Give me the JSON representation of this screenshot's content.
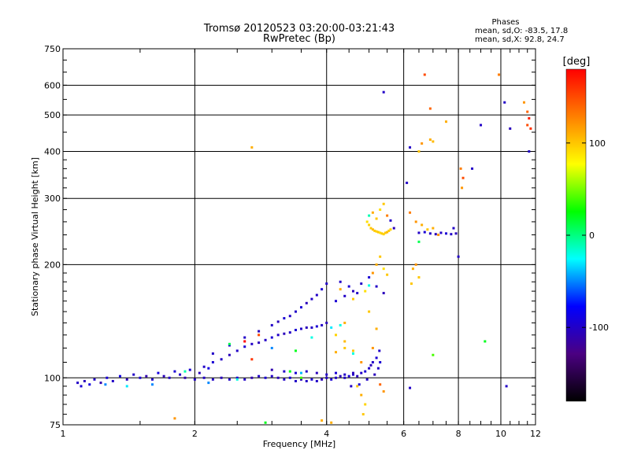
{
  "chart_data": {
    "type": "scatter",
    "title": "Tromsø 20120523 03:20:00-03:21:43",
    "subtitle": "RwPretec (Bp)",
    "xlabel": "Frequency [MHz]",
    "ylabel": "Stationary phase Virtual Height [km]",
    "x_scale": "log",
    "y_scale": "log",
    "xlim": [
      1,
      12
    ],
    "ylim": [
      75,
      750
    ],
    "x_ticks": [
      1,
      2,
      4,
      6,
      8,
      10,
      12
    ],
    "y_ticks": [
      75,
      100,
      200,
      300,
      400,
      500,
      600,
      750
    ],
    "grid": true,
    "phase_stats": {
      "heading": "Phases",
      "line_o": "mean, sd,O: -83.5, 17.8",
      "line_x": "mean, sd,X: 92.8, 24.7"
    },
    "colorbar": {
      "label": "[deg]",
      "range": [
        -180,
        180
      ],
      "ticks": [
        "100",
        "0",
        "-100"
      ],
      "tick_values": [
        100,
        0,
        -100
      ],
      "stops": [
        "#000000",
        "#4b0082",
        "#0000ff",
        "#00ffff",
        "#00ff00",
        "#ffff00",
        "#ff8000",
        "#ff0000"
      ]
    },
    "series": [
      {
        "name": "",
        "points": [
          [
            1.08,
            97,
            -100
          ],
          [
            1.1,
            95,
            -95
          ],
          [
            1.12,
            98,
            -105
          ],
          [
            1.15,
            96,
            -90
          ],
          [
            1.18,
            99,
            -100
          ],
          [
            1.22,
            97,
            -110
          ],
          [
            1.26,
            100,
            -95
          ],
          [
            1.3,
            98,
            -100
          ],
          [
            1.35,
            101,
            -90
          ],
          [
            1.4,
            99,
            -105
          ],
          [
            1.45,
            102,
            -100
          ],
          [
            1.5,
            100,
            -95
          ],
          [
            1.55,
            101,
            -110
          ],
          [
            1.6,
            99,
            -100
          ],
          [
            1.65,
            103,
            -90
          ],
          [
            1.7,
            101,
            -105
          ],
          [
            1.75,
            100,
            -100
          ],
          [
            1.8,
            104,
            -95
          ],
          [
            1.85,
            102,
            -100
          ],
          [
            1.9,
            100,
            -110
          ],
          [
            1.95,
            105,
            -95
          ],
          [
            2.0,
            99,
            -100
          ],
          [
            2.05,
            103,
            -105
          ],
          [
            2.1,
            100,
            -100
          ],
          [
            2.15,
            106,
            -90
          ],
          [
            2.2,
            99,
            -100
          ],
          [
            2.3,
            100,
            -105
          ],
          [
            2.4,
            99,
            -100
          ],
          [
            2.5,
            100,
            -95
          ],
          [
            2.6,
            99,
            -100
          ],
          [
            2.7,
            100,
            -110
          ],
          [
            2.8,
            101,
            -100
          ],
          [
            2.9,
            100,
            -95
          ],
          [
            3.0,
            101,
            -100
          ],
          [
            3.1,
            100,
            -105
          ],
          [
            3.2,
            99,
            -100
          ],
          [
            3.3,
            100,
            -95
          ],
          [
            3.4,
            98,
            -100
          ],
          [
            3.5,
            99,
            -105
          ],
          [
            3.6,
            98,
            -100
          ],
          [
            3.7,
            99,
            -95
          ],
          [
            3.8,
            98,
            -100
          ],
          [
            3.9,
            99,
            -105
          ],
          [
            4.0,
            100,
            -100
          ],
          [
            4.1,
            99,
            -95
          ],
          [
            4.2,
            100,
            -100
          ],
          [
            4.3,
            101,
            -105
          ],
          [
            4.4,
            100,
            -100
          ],
          [
            4.5,
            101,
            -95
          ],
          [
            4.6,
            102,
            -100
          ],
          [
            4.7,
            101,
            -105
          ],
          [
            4.8,
            103,
            -100
          ],
          [
            4.9,
            104,
            -95
          ],
          [
            5.0,
            106,
            -100
          ],
          [
            5.05,
            108,
            -105
          ],
          [
            5.1,
            110,
            -100
          ],
          [
            5.2,
            113,
            -95
          ],
          [
            5.28,
            118,
            -100
          ],
          [
            3.0,
            105,
            -110
          ],
          [
            3.2,
            104,
            -100
          ],
          [
            3.4,
            103,
            -95
          ],
          [
            3.6,
            104,
            -100
          ],
          [
            3.8,
            103,
            -105
          ],
          [
            4.0,
            102,
            -100
          ],
          [
            4.2,
            103,
            -95
          ],
          [
            4.4,
            102,
            -100
          ],
          [
            4.6,
            103,
            -105
          ],
          [
            2.1,
            107,
            -100
          ],
          [
            2.2,
            110,
            -95
          ],
          [
            2.3,
            112,
            -100
          ],
          [
            2.4,
            115,
            -105
          ],
          [
            2.5,
            118,
            -100
          ],
          [
            2.6,
            121,
            -95
          ],
          [
            2.7,
            123,
            -100
          ],
          [
            2.8,
            124,
            -105
          ],
          [
            2.9,
            126,
            -100
          ],
          [
            3.0,
            128,
            -95
          ],
          [
            3.1,
            130,
            -100
          ],
          [
            3.2,
            131,
            -105
          ],
          [
            3.3,
            132,
            -100
          ],
          [
            3.4,
            134,
            -95
          ],
          [
            3.5,
            135,
            -100
          ],
          [
            3.6,
            136,
            -105
          ],
          [
            3.7,
            136,
            -100
          ],
          [
            3.8,
            137,
            -95
          ],
          [
            3.9,
            138,
            -100
          ],
          [
            4.0,
            140,
            -105
          ],
          [
            2.2,
            116,
            -100
          ],
          [
            2.4,
            122,
            -95
          ],
          [
            2.6,
            128,
            -100
          ],
          [
            2.8,
            133,
            -105
          ],
          [
            3.0,
            138,
            -100
          ],
          [
            3.2,
            144,
            -95
          ],
          [
            3.4,
            150,
            -100
          ],
          [
            3.6,
            158,
            -105
          ],
          [
            3.8,
            166,
            -100
          ],
          [
            3.9,
            172,
            -95
          ],
          [
            4.0,
            178,
            -100
          ],
          [
            3.7,
            162,
            -100
          ],
          [
            3.5,
            154,
            -95
          ],
          [
            3.3,
            146,
            -100
          ],
          [
            3.1,
            141,
            -105
          ],
          [
            4.2,
            160,
            -95
          ],
          [
            4.4,
            165,
            -100
          ],
          [
            4.6,
            170,
            -105
          ],
          [
            4.8,
            178,
            -100
          ],
          [
            5.0,
            185,
            -95
          ],
          [
            5.2,
            175,
            -100
          ],
          [
            5.4,
            168,
            -105
          ],
          [
            4.3,
            180,
            -100
          ],
          [
            4.5,
            175,
            -95
          ],
          [
            4.7,
            168,
            -100
          ],
          [
            4.3,
            172,
            110
          ],
          [
            4.6,
            162,
            100
          ],
          [
            4.9,
            170,
            90
          ],
          [
            5.0,
            176,
            -20
          ],
          [
            4.2,
            130,
            95
          ],
          [
            4.4,
            125,
            105
          ],
          [
            4.6,
            118,
            100
          ],
          [
            4.4,
            140,
            110
          ],
          [
            4.8,
            110,
            120
          ],
          [
            4.7,
            95,
            100
          ],
          [
            4.8,
            90,
            110
          ],
          [
            4.9,
            85,
            95
          ],
          [
            4.85,
            80,
            100
          ],
          [
            5.0,
            150,
            100
          ],
          [
            5.2,
            135,
            110
          ],
          [
            5.1,
            190,
            120
          ],
          [
            5.2,
            200,
            110
          ],
          [
            5.3,
            210,
            100
          ],
          [
            5.4,
            195,
            90
          ],
          [
            5.5,
            188,
            100
          ],
          [
            4.95,
            260,
            90
          ],
          [
            5.0,
            255,
            95
          ],
          [
            5.05,
            250,
            100
          ],
          [
            5.1,
            248,
            105
          ],
          [
            5.15,
            246,
            100
          ],
          [
            5.2,
            245,
            95
          ],
          [
            5.25,
            244,
            100
          ],
          [
            5.3,
            243,
            90
          ],
          [
            5.35,
            242,
            100
          ],
          [
            5.4,
            241,
            95
          ],
          [
            5.45,
            243,
            100
          ],
          [
            5.5,
            244,
            105
          ],
          [
            5.55,
            246,
            100
          ],
          [
            5.6,
            248,
            95
          ],
          [
            5.0,
            270,
            -10
          ],
          [
            5.1,
            275,
            110
          ],
          [
            5.2,
            265,
            100
          ],
          [
            5.3,
            280,
            90
          ],
          [
            5.4,
            290,
            100
          ],
          [
            5.5,
            270,
            130
          ],
          [
            5.6,
            262,
            -100
          ],
          [
            5.7,
            250,
            -105
          ],
          [
            6.5,
            243,
            -100
          ],
          [
            6.7,
            244,
            -95
          ],
          [
            6.9,
            242,
            -100
          ],
          [
            7.1,
            241,
            -105
          ],
          [
            7.3,
            243,
            -100
          ],
          [
            7.5,
            242,
            -95
          ],
          [
            7.7,
            241,
            -100
          ],
          [
            7.9,
            242,
            -105
          ],
          [
            6.2,
            275,
            130
          ],
          [
            6.4,
            260,
            120
          ],
          [
            6.6,
            255,
            110
          ],
          [
            6.8,
            248,
            100
          ],
          [
            7.0,
            250,
            110
          ],
          [
            7.2,
            240,
            120
          ],
          [
            6.5,
            230,
            10
          ],
          [
            6.3,
            195,
            110
          ],
          [
            6.5,
            185,
            100
          ],
          [
            6.4,
            200,
            120
          ],
          [
            6.25,
            178,
            100
          ],
          [
            7.8,
            250,
            -100
          ],
          [
            8.1,
            360,
            130
          ],
          [
            8.2,
            340,
            150
          ],
          [
            8.15,
            320,
            120
          ],
          [
            6.6,
            420,
            120
          ],
          [
            6.9,
            430,
            110
          ],
          [
            7.0,
            425,
            105
          ],
          [
            6.2,
            410,
            -100
          ],
          [
            6.5,
            400,
            100
          ],
          [
            8.0,
            210,
            -100
          ],
          [
            6.1,
            330,
            -100
          ],
          [
            6.7,
            640,
            150
          ],
          [
            6.9,
            520,
            140
          ],
          [
            7.5,
            480,
            110
          ],
          [
            9.0,
            470,
            -100
          ],
          [
            10.2,
            540,
            -100
          ],
          [
            10.5,
            460,
            -105
          ],
          [
            11.3,
            540,
            120
          ],
          [
            11.5,
            470,
            150
          ],
          [
            11.6,
            490,
            170
          ],
          [
            11.5,
            510,
            140
          ],
          [
            11.6,
            400,
            -100
          ],
          [
            11.7,
            460,
            160
          ],
          [
            9.9,
            640,
            130
          ],
          [
            5.4,
            575,
            -100
          ],
          [
            8.6,
            360,
            -100
          ],
          [
            9.2,
            125,
            20
          ],
          [
            7.0,
            115,
            40
          ],
          [
            6.2,
            94,
            -100
          ],
          [
            10.3,
            95,
            -100
          ],
          [
            2.7,
            410,
            110
          ],
          [
            1.8,
            78,
            120
          ],
          [
            2.9,
            76,
            20
          ],
          [
            3.9,
            77,
            110
          ],
          [
            4.1,
            76,
            110
          ],
          [
            4.2,
            117,
            110
          ],
          [
            4.4,
            120,
            100
          ],
          [
            4.6,
            116,
            -20
          ],
          [
            5.1,
            120,
            120
          ],
          [
            5.3,
            96,
            140
          ],
          [
            5.4,
            92,
            120
          ],
          [
            1.6,
            96,
            -50
          ],
          [
            1.9,
            104,
            -10
          ],
          [
            2.15,
            97,
            -50
          ],
          [
            2.5,
            99,
            -20
          ],
          [
            2.7,
            112,
            160
          ],
          [
            3.3,
            104,
            20
          ],
          [
            3.5,
            100,
            40
          ],
          [
            3.0,
            120,
            -50
          ],
          [
            3.4,
            118,
            20
          ],
          [
            2.6,
            125,
            180
          ],
          [
            2.8,
            130,
            150
          ],
          [
            3.7,
            128,
            -20
          ],
          [
            4.1,
            136,
            -30
          ],
          [
            4.3,
            138,
            -20
          ],
          [
            3.5,
            103,
            -40
          ],
          [
            1.4,
            95,
            -30
          ],
          [
            1.25,
            96,
            -50
          ],
          [
            2.4,
            123,
            10
          ],
          [
            4.55,
            95,
            -100
          ],
          [
            4.75,
            96,
            -95
          ],
          [
            4.95,
            99,
            -100
          ],
          [
            5.15,
            102,
            -105
          ],
          [
            5.25,
            106,
            -100
          ],
          [
            5.3,
            110,
            -95
          ]
        ]
      }
    ]
  }
}
